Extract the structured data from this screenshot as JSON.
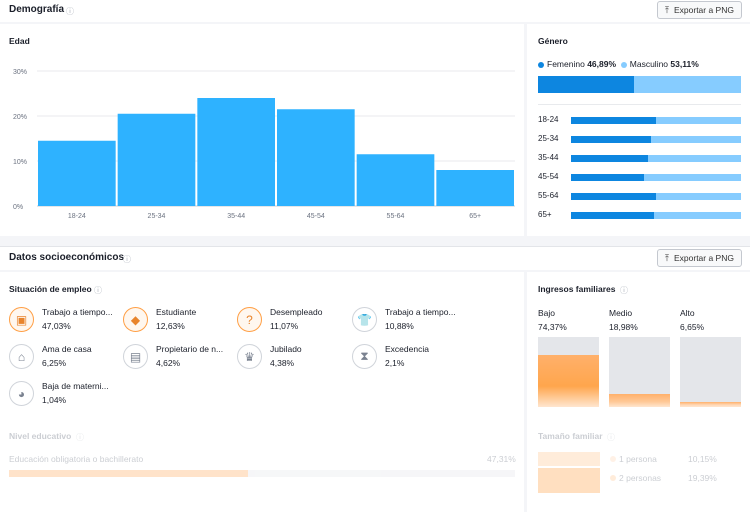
{
  "demografia": {
    "title": "Demografía",
    "info_icon": "info-icon",
    "export_label": "Exportar a PNG",
    "edad": {
      "title": "Edad",
      "y_ticks": [
        "30%",
        "20%",
        "10%",
        "0%"
      ]
    },
    "genero": {
      "title": "Género",
      "femenino_label": "Femenino",
      "femenino_value": "46,89%",
      "masculino_label": "Masculino",
      "masculino_value": "53,11%",
      "rows": [
        {
          "label": "18-24",
          "female": 0.5
        },
        {
          "label": "25-34",
          "female": 0.47
        },
        {
          "label": "35-44",
          "female": 0.45
        },
        {
          "label": "45-54",
          "female": 0.43
        },
        {
          "label": "55-64",
          "female": 0.5
        },
        {
          "label": "65+",
          "female": 0.49
        }
      ]
    }
  },
  "chart_data": {
    "type": "bar",
    "title": "Edad",
    "categories": [
      "18-24",
      "25-34",
      "35-44",
      "45-54",
      "55-64",
      "65+"
    ],
    "values": [
      14.5,
      20.5,
      24,
      21.5,
      11.5,
      8
    ],
    "ylim": [
      0,
      30
    ],
    "y_ticks": [
      "30%",
      "20%",
      "10%",
      "0%"
    ],
    "grid": true,
    "color": "#2eb2ff"
  },
  "socio": {
    "title": "Datos socioeconómicos",
    "export_label": "Exportar a PNG",
    "empleo": {
      "title": "Situación de empleo",
      "items": [
        {
          "label": "Trabajo a tiempo...",
          "value": "47,03%",
          "icon": "briefcase-icon",
          "highlight": true
        },
        {
          "label": "Estudiante",
          "value": "12,63%",
          "icon": "graduation-cap-icon",
          "highlight": true
        },
        {
          "label": "Desempleado",
          "value": "11,07%",
          "icon": "question-icon",
          "highlight": true
        },
        {
          "label": "Trabajo a tiempo...",
          "value": "10,88%",
          "icon": "shirt-icon",
          "highlight": false
        },
        {
          "label": "Ama de casa",
          "value": "6,25%",
          "icon": "house-icon",
          "highlight": false
        },
        {
          "label": "Propietario de n...",
          "value": "4,62%",
          "icon": "store-icon",
          "highlight": false
        },
        {
          "label": "Jubilado",
          "value": "4,38%",
          "icon": "crown-icon",
          "highlight": false
        },
        {
          "label": "Excedencia",
          "value": "2,1%",
          "icon": "hourglass-icon",
          "highlight": false
        },
        {
          "label": "Baja de materni...",
          "value": "1,04%",
          "icon": "stroller-icon",
          "highlight": false
        }
      ]
    },
    "ingresos": {
      "title": "Ingresos familiares",
      "items": [
        {
          "label": "Bajo",
          "value": "74,37%",
          "level": 0.7437,
          "color": "#ffa64d"
        },
        {
          "label": "Medio",
          "value": "18,98%",
          "level": 0.1898,
          "color": "#ffc998"
        },
        {
          "label": "Alto",
          "value": "6,65%",
          "level": 0.0665,
          "color": "#ffd9b8"
        }
      ]
    },
    "nivel_educativo": {
      "title": "Nivel educativo",
      "row_label": "Educación obligatoria o bachillerato",
      "row_value": "47,31%",
      "level": 0.4731
    },
    "tamano_familiar": {
      "title": "Tamaño familiar",
      "rows": [
        {
          "label": "1 persona",
          "value": "10,15%"
        },
        {
          "label": "2 personas",
          "value": "19,39%"
        }
      ]
    }
  }
}
